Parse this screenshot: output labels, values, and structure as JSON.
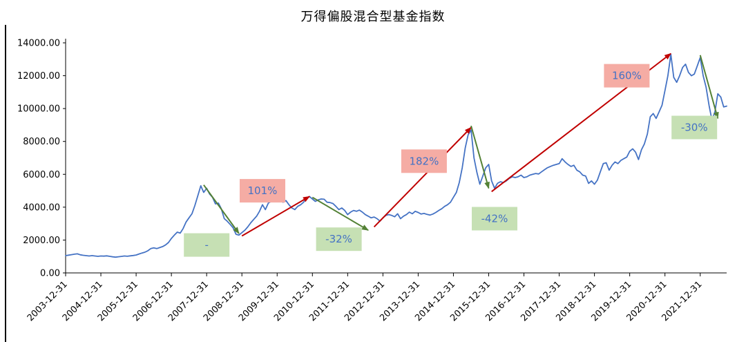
{
  "chart": {
    "title": "万得偏股混合型基金指数"
  },
  "chart_data": {
    "type": "line",
    "title": "万得偏股混合型基金指数",
    "xlabel": "",
    "ylabel": "",
    "ylim": [
      0,
      14000
    ],
    "y_tick_step": 2000,
    "grid": false,
    "legend_position": "none",
    "x_tick_labels": [
      "2003-12-31",
      "2004-12-31",
      "2005-12-31",
      "2006-12-31",
      "2007-12-31",
      "2008-12-31",
      "2009-12-31",
      "2010-12-31",
      "2011-12-31",
      "2012-12-31",
      "2013-12-31",
      "2014-12-31",
      "2015-12-31",
      "2016-12-31",
      "2017-12-31",
      "2018-12-31",
      "2019-12-31",
      "2020-12-31",
      "2021-12-31"
    ],
    "series": {
      "name": "万得偏股混合型基金指数",
      "start": "2003-12",
      "frequency": "monthly",
      "values": [
        1050,
        1080,
        1110,
        1140,
        1160,
        1100,
        1070,
        1050,
        1030,
        1050,
        1030,
        1010,
        1030,
        1020,
        1040,
        1010,
        980,
        960,
        985,
        1005,
        1030,
        1015,
        1040,
        1060,
        1090,
        1150,
        1210,
        1260,
        1350,
        1480,
        1520,
        1480,
        1540,
        1600,
        1700,
        1850,
        2100,
        2300,
        2480,
        2420,
        2700,
        3100,
        3350,
        3600,
        4100,
        4700,
        5300,
        4900,
        5150,
        4800,
        4600,
        4200,
        4250,
        3900,
        3300,
        3150,
        2950,
        2750,
        2350,
        2300,
        2450,
        2600,
        2800,
        3050,
        3250,
        3450,
        3750,
        4150,
        3850,
        4250,
        4350,
        4550,
        4600,
        4450,
        4300,
        4400,
        4150,
        3950,
        3850,
        4050,
        4150,
        4300,
        4550,
        4650,
        4500,
        4350,
        4450,
        4500,
        4480,
        4300,
        4280,
        4220,
        4050,
        3850,
        3950,
        3800,
        3550,
        3700,
        3800,
        3750,
        3820,
        3700,
        3550,
        3450,
        3350,
        3400,
        3300,
        3150,
        3350,
        3500,
        3550,
        3500,
        3420,
        3600,
        3300,
        3450,
        3550,
        3700,
        3600,
        3750,
        3680,
        3580,
        3620,
        3560,
        3520,
        3580,
        3680,
        3800,
        3900,
        4050,
        4150,
        4300,
        4600,
        4900,
        5500,
        6400,
        7600,
        8400,
        8700,
        7000,
        6100,
        5400,
        5900,
        6400,
        6600,
        5600,
        5150,
        5450,
        5550,
        5500,
        5600,
        5750,
        5850,
        5800,
        5850,
        5950,
        5800,
        5850,
        5950,
        6000,
        6050,
        6020,
        6150,
        6280,
        6400,
        6480,
        6550,
        6600,
        6650,
        6950,
        6750,
        6600,
        6480,
        6550,
        6250,
        6150,
        5950,
        5900,
        5450,
        5600,
        5400,
        5650,
        6150,
        6650,
        6700,
        6250,
        6550,
        6750,
        6650,
        6850,
        6950,
        7050,
        7400,
        7550,
        7350,
        6900,
        7500,
        7850,
        8450,
        9500,
        9700,
        9400,
        9800,
        10200,
        11100,
        12000,
        13300,
        11900,
        11600,
        12000,
        12500,
        12700,
        12200,
        12000,
        12100,
        12600,
        13100,
        12000,
        11300,
        10200,
        9300,
        9800,
        10900,
        10700,
        10100,
        10150
      ]
    },
    "annotations": {
      "boxes": [
        {
          "label": "-",
          "type": "drawdown",
          "date": "2007-12",
          "value": 1700
        },
        {
          "label": "101%",
          "type": "gain",
          "date": "2009-07",
          "value": 5000
        },
        {
          "label": "-32%",
          "type": "drawdown",
          "date": "2011-09",
          "value": 2050
        },
        {
          "label": "182%",
          "type": "gain",
          "date": "2014-02",
          "value": 6800
        },
        {
          "label": "-42%",
          "type": "drawdown",
          "date": "2016-02",
          "value": 3300
        },
        {
          "label": "160%",
          "type": "gain",
          "date": "2019-11",
          "value": 12000
        },
        {
          "label": "-30%",
          "type": "drawdown",
          "date": "2021-10",
          "value": 8850
        }
      ],
      "arrows": [
        {
          "type": "drawdown",
          "from": {
            "date": "2007-11",
            "value": 5350
          },
          "to": {
            "date": "2008-11",
            "value": 2400
          }
        },
        {
          "type": "gain",
          "from": {
            "date": "2008-12",
            "value": 2250
          },
          "to": {
            "date": "2010-11",
            "value": 4650
          }
        },
        {
          "type": "drawdown",
          "from": {
            "date": "2010-12",
            "value": 4600
          },
          "to": {
            "date": "2012-07",
            "value": 2600
          }
        },
        {
          "type": "gain",
          "from": {
            "date": "2012-09",
            "value": 2800
          },
          "to": {
            "date": "2015-06",
            "value": 8850
          }
        },
        {
          "type": "drawdown",
          "from": {
            "date": "2015-06",
            "value": 8950
          },
          "to": {
            "date": "2015-12",
            "value": 5150
          }
        },
        {
          "type": "gain",
          "from": {
            "date": "2016-01",
            "value": 4950
          },
          "to": {
            "date": "2021-02",
            "value": 13350
          }
        },
        {
          "type": "drawdown",
          "from": {
            "date": "2021-12",
            "value": 13250
          },
          "to": {
            "date": "2022-06",
            "value": 9400
          }
        }
      ]
    },
    "colors": {
      "line": "#4472C4",
      "gain_arrow": "#C00000",
      "drawdown_arrow": "#538135",
      "gain_box_fill": "#F5ACA4",
      "drawdown_box_fill": "#C6E0B4",
      "annotation_text": "#4472C4",
      "axis": "#000000"
    }
  }
}
